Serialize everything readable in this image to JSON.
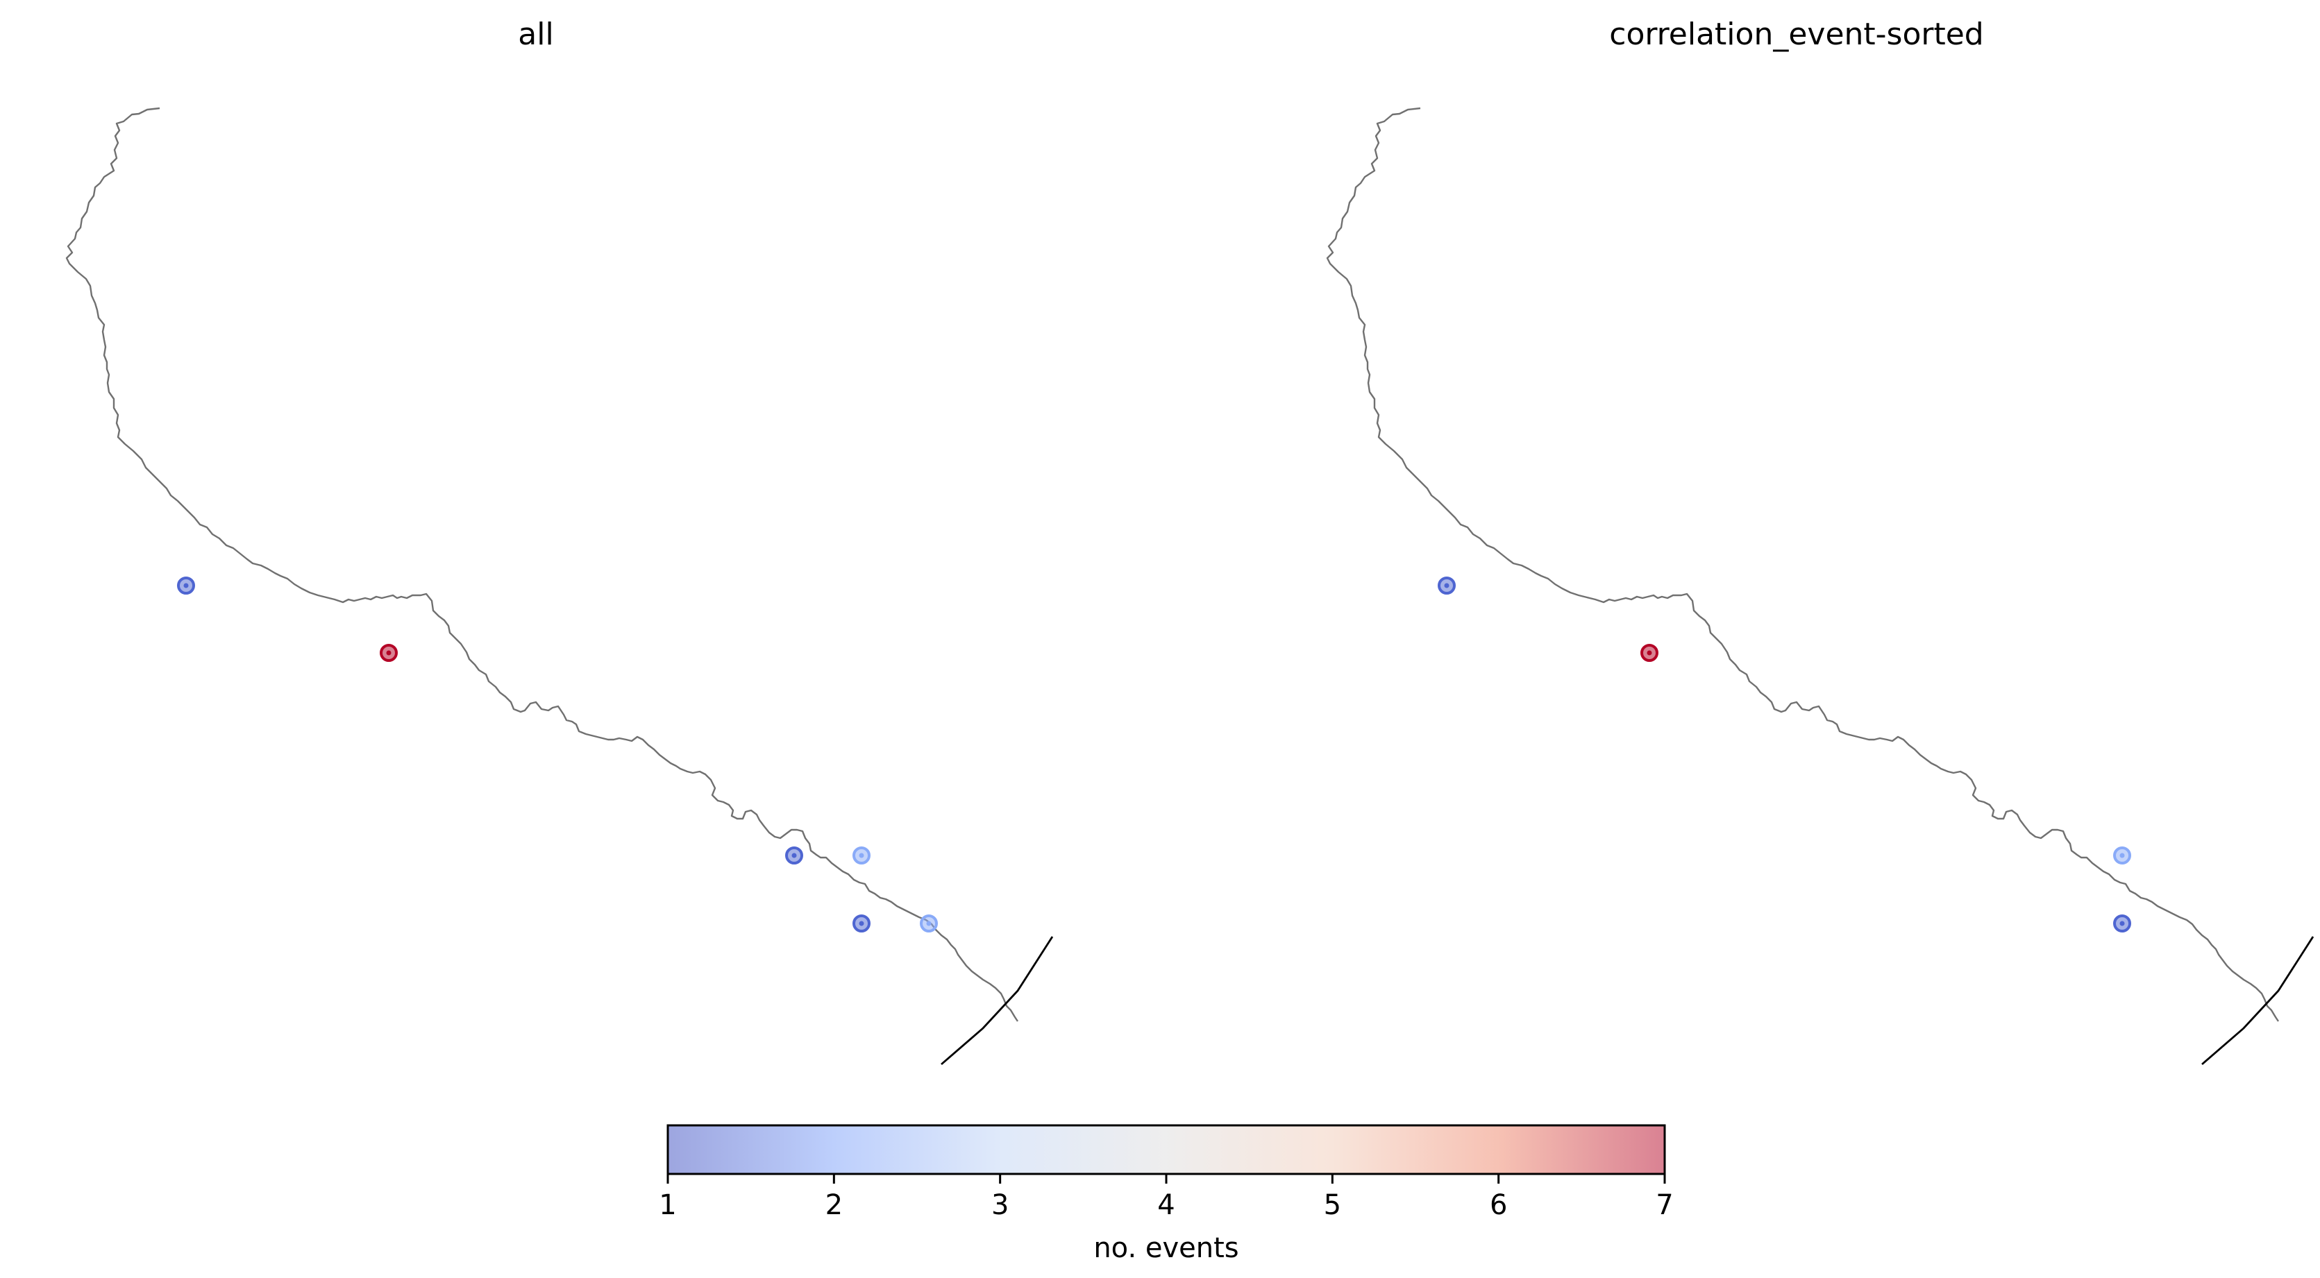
{
  "panels": [
    {
      "title": "all",
      "points": [
        {
          "index": 0,
          "events": 1.3
        },
        {
          "index": 1,
          "events": 7
        },
        {
          "index": 2,
          "events": 1.3
        },
        {
          "index": 3,
          "events": 2.2
        },
        {
          "index": 4,
          "events": 1.3
        },
        {
          "index": 5,
          "events": 2.2
        }
      ]
    },
    {
      "title": "correlation_event-sorted",
      "points": [
        {
          "index": 0,
          "events": 1.3
        },
        {
          "index": 1,
          "events": 7
        },
        {
          "index": 3,
          "events": 2.2
        },
        {
          "index": 4,
          "events": 1.3
        }
      ]
    }
  ],
  "colorbar": {
    "label": "no. events",
    "vmin": 1,
    "vmax": 7,
    "ticks": [
      "1",
      "2",
      "3",
      "4",
      "5",
      "6",
      "7"
    ],
    "colormap": "coolwarm",
    "stops": [
      "#3b4cc0",
      "#7b9ff9",
      "#c0d4f5",
      "#dddcdc",
      "#f2cbb7",
      "#ee8468",
      "#b40426"
    ],
    "alpha": 0.5
  },
  "colors": {
    "river": "#707070",
    "border": "#000000"
  }
}
